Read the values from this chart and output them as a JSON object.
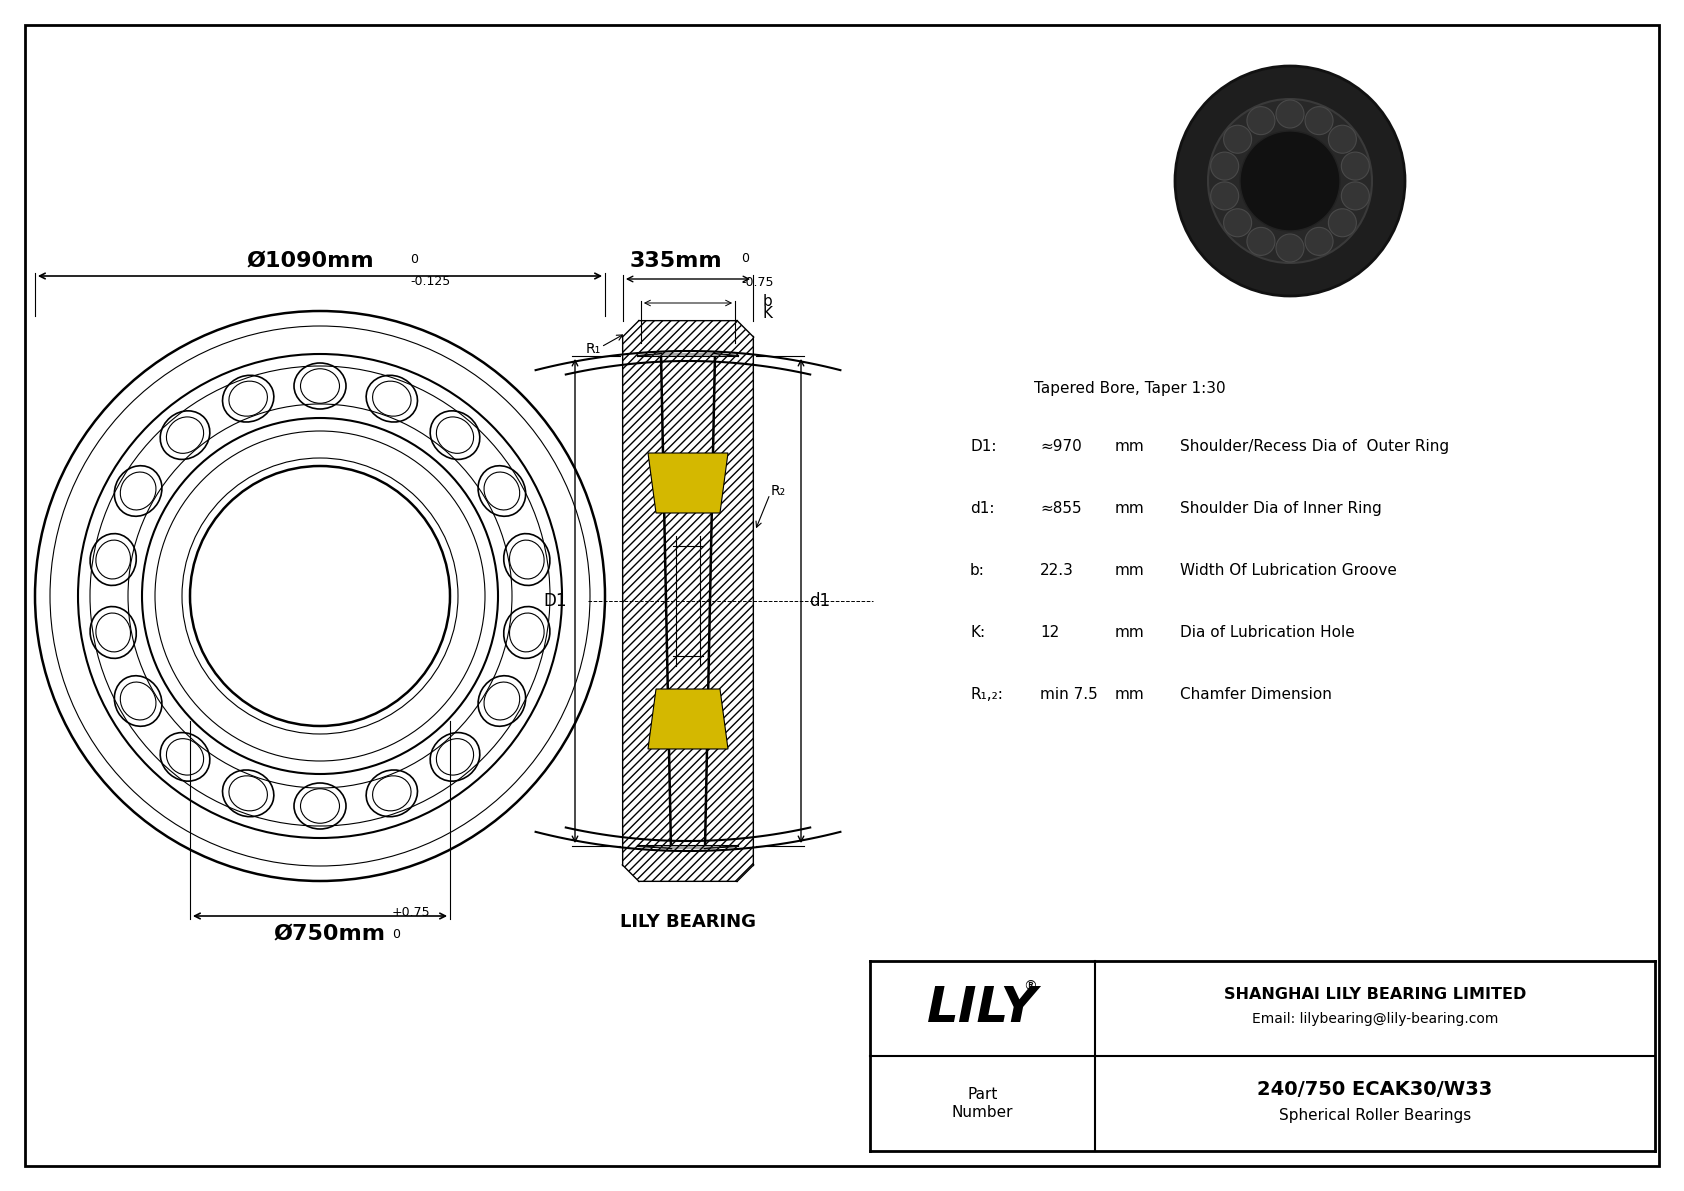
{
  "bg_color": "#ffffff",
  "line_color": "#000000",
  "yellow_color": "#d4b800",
  "outer_dia_label": "Ø1090mm",
  "outer_dia_tol_upper": "0",
  "outer_dia_tol_lower": "-0.125",
  "inner_dia_label": "Ø750mm",
  "inner_dia_tol_upper": "+0.75",
  "inner_dia_tol_lower": "0",
  "width_label": "335mm",
  "width_tol_upper": "0",
  "width_tol_lower": "-0.75",
  "b_label": "b",
  "K_label": "K",
  "R1_label": "R₁",
  "R2_label": "R₂",
  "D1_label": "D1",
  "d1_label": "d1",
  "param_title": "Tapered Bore, Taper 1:30",
  "params": [
    {
      "key": "D1:",
      "value": "≈970",
      "unit": "mm",
      "desc": "Shoulder/Recess Dia of  Outer Ring"
    },
    {
      "key": "d1:",
      "value": "≈855",
      "unit": "mm",
      "desc": "Shoulder Dia of Inner Ring"
    },
    {
      "key": "b:",
      "value": "22.3",
      "unit": "mm",
      "desc": "Width Of Lubrication Groove"
    },
    {
      "key": "K:",
      "value": "12",
      "unit": "mm",
      "desc": "Dia of Lubrication Hole"
    },
    {
      "key": "R₁,₂:",
      "value": "min 7.5",
      "unit": "mm",
      "desc": "Chamfer Dimension"
    }
  ],
  "company_name": "SHANGHAI LILY BEARING LIMITED",
  "company_email": "Email: lilybearing@lily-bearing.com",
  "logo_text": "LILY",
  "part_label": "Part\nNumber",
  "part_number": "240/750 ECAK30/W33",
  "part_type": "Spherical Roller Bearings",
  "lily_bearing_label": "LILY BEARING"
}
